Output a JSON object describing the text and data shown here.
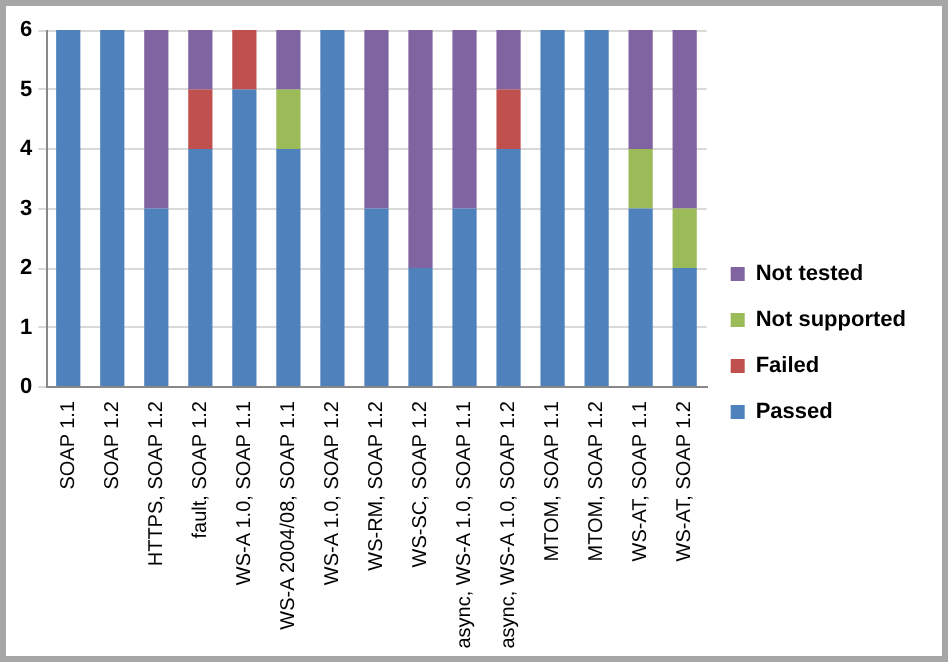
{
  "chart_data": {
    "type": "bar",
    "stacked": true,
    "categories": [
      "SOAP 1.1",
      "SOAP 1.2",
      "HTTPS, SOAP 1.2",
      "fault, SOAP 1.2",
      "WS-A 1.0, SOAP 1.1",
      "WS-A 2004/08, SOAP 1.1",
      "WS-A 1.0, SOAP 1.2",
      "WS-RM, SOAP 1.2",
      "WS-SC, SOAP 1.2",
      "async, WS-A 1.0, SOAP 1.1",
      "async, WS-A 1.0, SOAP 1.2",
      "MTOM, SOAP 1.1",
      "MTOM, SOAP 1.2",
      "WS-AT, SOAP 1.1",
      "WS-AT, SOAP 1.2"
    ],
    "series": [
      {
        "name": "Passed",
        "color": "#4f81bd",
        "values": [
          6,
          6,
          3,
          4,
          5,
          4,
          6,
          3,
          2,
          3,
          4,
          6,
          6,
          3,
          2
        ]
      },
      {
        "name": "Failed",
        "color": "#c0504d",
        "values": [
          0,
          0,
          0,
          1,
          1,
          0,
          0,
          0,
          0,
          0,
          1,
          0,
          0,
          0,
          0
        ]
      },
      {
        "name": "Not supported",
        "color": "#9bbb59",
        "values": [
          0,
          0,
          0,
          0,
          0,
          1,
          0,
          0,
          0,
          0,
          0,
          0,
          0,
          1,
          1
        ]
      },
      {
        "name": "Not tested",
        "color": "#8064a2",
        "values": [
          0,
          0,
          3,
          1,
          0,
          1,
          0,
          3,
          4,
          3,
          1,
          0,
          0,
          2,
          3
        ]
      }
    ],
    "ylim": [
      0,
      6
    ],
    "yticks": [
      0,
      1,
      2,
      3,
      4,
      5,
      6
    ],
    "grid": "y",
    "legend": "right"
  }
}
